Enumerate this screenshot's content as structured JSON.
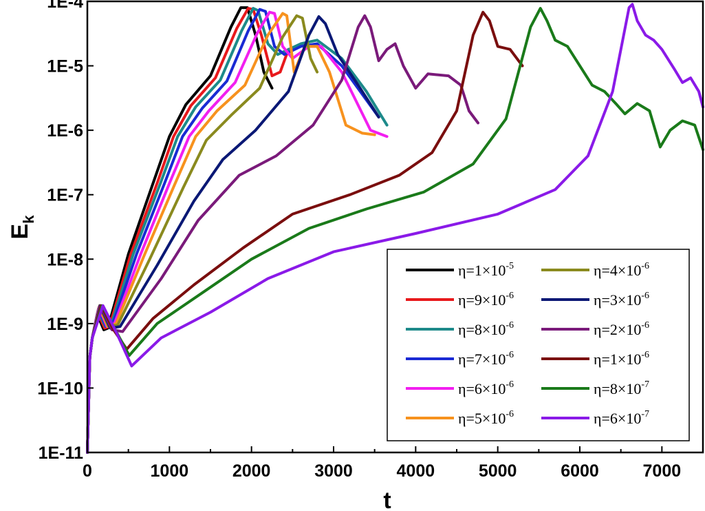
{
  "chart_data": {
    "type": "line",
    "title": "",
    "xlabel": "t",
    "ylabel": "E",
    "ylabel_sub": "k",
    "xlim": [
      0,
      7500
    ],
    "ylim": [
      1e-11,
      0.0001
    ],
    "yscale": "log",
    "grid": false,
    "legend_position": "bottom-right",
    "legend_columns": 2,
    "x_ticks": [
      "0",
      "1000",
      "2000",
      "3000",
      "4000",
      "5000",
      "6000",
      "7000"
    ],
    "y_ticks": [
      "1E-11",
      "1E-10",
      "1E-9",
      "1E-8",
      "1E-7",
      "1E-6",
      "1E-5",
      "1E-4"
    ],
    "series": [
      {
        "name": "η=1×10",
        "exp": "-5",
        "color": "#000000",
        "points": [
          [
            0,
            1e-11
          ],
          [
            30,
            3e-10
          ],
          [
            60,
            6e-10
          ],
          [
            120,
            1.4e-09
          ],
          [
            200,
            8e-10
          ],
          [
            250,
            8.5e-10
          ],
          [
            500,
            1.2e-08
          ],
          [
            800,
            1.5e-07
          ],
          [
            1000,
            8e-07
          ],
          [
            1200,
            2.5e-06
          ],
          [
            1500,
            7e-06
          ],
          [
            1750,
            4e-05
          ],
          [
            1870,
            8e-05
          ],
          [
            1950,
            8e-05
          ],
          [
            2050,
            3e-05
          ],
          [
            2150,
            8e-06
          ],
          [
            2250,
            4.5e-06
          ]
        ]
      },
      {
        "name": "η=9×10",
        "exp": "-6",
        "color": "#e8191c",
        "points": [
          [
            0,
            1e-11
          ],
          [
            30,
            3e-10
          ],
          [
            60,
            6e-10
          ],
          [
            125,
            1.5e-09
          ],
          [
            210,
            8.5e-10
          ],
          [
            270,
            9e-10
          ],
          [
            530,
            1.2e-08
          ],
          [
            850,
            1.5e-07
          ],
          [
            1050,
            8e-07
          ],
          [
            1260,
            2.4e-06
          ],
          [
            1560,
            6.5e-06
          ],
          [
            1820,
            3.8e-05
          ],
          [
            1960,
            7.8e-05
          ],
          [
            2020,
            7.5e-05
          ],
          [
            2120,
            3e-05
          ],
          [
            2250,
            7e-06
          ],
          [
            2350,
            8e-06
          ],
          [
            2450,
            1.8e-05
          ]
        ]
      },
      {
        "name": "η=8×10",
        "exp": "-6",
        "color": "#1d8a8a",
        "points": [
          [
            0,
            1e-11
          ],
          [
            30,
            3e-10
          ],
          [
            60,
            6e-10
          ],
          [
            130,
            1.6e-09
          ],
          [
            220,
            9e-10
          ],
          [
            290,
            9.5e-10
          ],
          [
            560,
            1.2e-08
          ],
          [
            890,
            1.5e-07
          ],
          [
            1100,
            8e-07
          ],
          [
            1320,
            2.3e-06
          ],
          [
            1620,
            6e-06
          ],
          [
            1880,
            3.5e-05
          ],
          [
            2020,
            7.8e-05
          ],
          [
            2080,
            7.2e-05
          ],
          [
            2200,
            2.2e-05
          ],
          [
            2320,
            1.5e-05
          ],
          [
            2600,
            2.2e-05
          ],
          [
            2800,
            2.5e-05
          ],
          [
            3100,
            1.3e-05
          ],
          [
            3400,
            4e-06
          ],
          [
            3650,
            1.2e-06
          ]
        ]
      },
      {
        "name": "η=7×10",
        "exp": "-6",
        "color": "#1a2ad4",
        "points": [
          [
            0,
            1e-11
          ],
          [
            30,
            3e-10
          ],
          [
            60,
            6e-10
          ],
          [
            135,
            1.7e-09
          ],
          [
            230,
            9e-10
          ],
          [
            310,
            1e-09
          ],
          [
            600,
            1.2e-08
          ],
          [
            940,
            1.5e-07
          ],
          [
            1160,
            8e-07
          ],
          [
            1400,
            2.2e-06
          ],
          [
            1700,
            5.8e-06
          ],
          [
            1960,
            3.5e-05
          ],
          [
            2100,
            7.5e-05
          ],
          [
            2170,
            7e-05
          ],
          [
            2280,
            2e-05
          ],
          [
            2400,
            1.5e-05
          ],
          [
            2600,
            2e-05
          ],
          [
            2800,
            2.2e-05
          ],
          [
            3100,
            1e-05
          ],
          [
            3550,
            1.6e-06
          ]
        ]
      },
      {
        "name": "η=6×10",
        "exp": "-6",
        "color": "#f21ff0",
        "points": [
          [
            0,
            1e-11
          ],
          [
            30,
            3e-10
          ],
          [
            60,
            6e-10
          ],
          [
            140,
            1.8e-09
          ],
          [
            240,
            9e-10
          ],
          [
            330,
            1e-09
          ],
          [
            650,
            1.2e-08
          ],
          [
            1000,
            1.5e-07
          ],
          [
            1240,
            8e-07
          ],
          [
            1480,
            2e-06
          ],
          [
            1800,
            5.5e-06
          ],
          [
            2070,
            3.2e-05
          ],
          [
            2220,
            6.8e-05
          ],
          [
            2280,
            6.5e-05
          ],
          [
            2380,
            2e-05
          ],
          [
            2500,
            1.3e-05
          ],
          [
            2700,
            2e-05
          ],
          [
            2850,
            2e-05
          ],
          [
            3100,
            8e-06
          ],
          [
            3450,
            1e-06
          ],
          [
            3650,
            8e-07
          ]
        ]
      },
      {
        "name": "η=5×10",
        "exp": "-6",
        "color": "#f7921e",
        "points": [
          [
            0,
            1e-11
          ],
          [
            30,
            3e-10
          ],
          [
            60,
            6e-10
          ],
          [
            145,
            1.8e-09
          ],
          [
            250,
            9e-10
          ],
          [
            350,
            1e-09
          ],
          [
            700,
            1.2e-08
          ],
          [
            1070,
            1.5e-07
          ],
          [
            1320,
            8e-07
          ],
          [
            1580,
            2e-06
          ],
          [
            1920,
            5e-06
          ],
          [
            2200,
            3e-05
          ],
          [
            2380,
            6.5e-05
          ],
          [
            2430,
            6e-05
          ],
          [
            2520,
            8e-06
          ],
          [
            2650,
            2e-05
          ],
          [
            2800,
            2e-05
          ],
          [
            2950,
            8e-06
          ],
          [
            3150,
            1.2e-06
          ],
          [
            3350,
            9e-07
          ],
          [
            3500,
            8.5e-07
          ]
        ]
      },
      {
        "name": "η=4×10",
        "exp": "-6",
        "color": "#8a8a1e",
        "points": [
          [
            0,
            1e-11
          ],
          [
            30,
            3e-10
          ],
          [
            60,
            6e-10
          ],
          [
            150,
            1.9e-09
          ],
          [
            260,
            9e-10
          ],
          [
            370,
            9.5e-10
          ],
          [
            760,
            1e-08
          ],
          [
            1170,
            1.3e-07
          ],
          [
            1450,
            7e-07
          ],
          [
            1750,
            1.7e-06
          ],
          [
            2100,
            4.5e-06
          ],
          [
            2380,
            2.8e-05
          ],
          [
            2550,
            6e-05
          ],
          [
            2620,
            5.5e-05
          ],
          [
            2720,
            1.3e-05
          ],
          [
            2800,
            8e-06
          ]
        ]
      },
      {
        "name": "η=3×10",
        "exp": "-6",
        "color": "#0a1875",
        "points": [
          [
            0,
            1e-11
          ],
          [
            30,
            3e-10
          ],
          [
            60,
            6e-10
          ],
          [
            155,
            1.9e-09
          ],
          [
            280,
            8.5e-10
          ],
          [
            400,
            9e-10
          ],
          [
            850,
            8e-09
          ],
          [
            1300,
            8e-08
          ],
          [
            1650,
            3.5e-07
          ],
          [
            2050,
            1e-06
          ],
          [
            2450,
            4e-06
          ],
          [
            2700,
            3e-05
          ],
          [
            2820,
            5.8e-05
          ],
          [
            2900,
            4.5e-05
          ],
          [
            3050,
            1.5e-05
          ],
          [
            3300,
            5e-06
          ],
          [
            3550,
            1.6e-06
          ]
        ]
      },
      {
        "name": "η=2×10",
        "exp": "-6",
        "color": "#7a1a7a",
        "points": [
          [
            0,
            1e-11
          ],
          [
            30,
            3e-10
          ],
          [
            60,
            6e-10
          ],
          [
            160,
            1.9e-09
          ],
          [
            300,
            8e-10
          ],
          [
            430,
            7.5e-10
          ],
          [
            900,
            5e-09
          ],
          [
            1350,
            4e-08
          ],
          [
            1850,
            2e-07
          ],
          [
            2300,
            4e-07
          ],
          [
            2750,
            1.2e-06
          ],
          [
            3100,
            6e-06
          ],
          [
            3300,
            4e-05
          ],
          [
            3380,
            6e-05
          ],
          [
            3450,
            4e-05
          ],
          [
            3550,
            1.2e-05
          ],
          [
            3650,
            1.8e-05
          ],
          [
            3750,
            2.2e-05
          ],
          [
            3850,
            1e-05
          ],
          [
            4000,
            4.5e-06
          ],
          [
            4150,
            7.5e-06
          ],
          [
            4400,
            7e-06
          ],
          [
            4550,
            5e-06
          ],
          [
            4650,
            2e-06
          ],
          [
            4760,
            1.3e-06
          ]
        ]
      },
      {
        "name": "η=1×10",
        "exp": "-6",
        "color": "#7a0e0e",
        "points": [
          [
            0,
            1e-11
          ],
          [
            30,
            3e-10
          ],
          [
            60,
            6e-10
          ],
          [
            170,
            1.9e-09
          ],
          [
            320,
            8e-10
          ],
          [
            480,
            4e-10
          ],
          [
            800,
            1.2e-09
          ],
          [
            1300,
            4e-09
          ],
          [
            1900,
            1.5e-08
          ],
          [
            2500,
            5e-08
          ],
          [
            3200,
            1e-07
          ],
          [
            3800,
            2e-07
          ],
          [
            4200,
            4.5e-07
          ],
          [
            4500,
            2e-06
          ],
          [
            4700,
            3e-05
          ],
          [
            4820,
            6.8e-05
          ],
          [
            4900,
            5e-05
          ],
          [
            5000,
            2e-05
          ],
          [
            5150,
            1.8e-05
          ],
          [
            5300,
            1e-05
          ]
        ]
      },
      {
        "name": "η=8×10",
        "exp": "-7",
        "color": "#1a7a1a",
        "points": [
          [
            0,
            1e-11
          ],
          [
            30,
            3e-10
          ],
          [
            60,
            6e-10
          ],
          [
            180,
            1.9e-09
          ],
          [
            340,
            8e-10
          ],
          [
            510,
            3.2e-10
          ],
          [
            850,
            1e-09
          ],
          [
            1400,
            3e-09
          ],
          [
            2000,
            1e-08
          ],
          [
            2700,
            3e-08
          ],
          [
            3400,
            6e-08
          ],
          [
            4100,
            1.1e-07
          ],
          [
            4700,
            3e-07
          ],
          [
            5100,
            1.5e-06
          ],
          [
            5400,
            4e-05
          ],
          [
            5520,
            7.8e-05
          ],
          [
            5600,
            5e-05
          ],
          [
            5700,
            2.5e-05
          ],
          [
            5850,
            2e-05
          ],
          [
            6000,
            1e-05
          ],
          [
            6150,
            5e-06
          ],
          [
            6300,
            4e-06
          ],
          [
            6450,
            2.5e-06
          ],
          [
            6550,
            1.8e-06
          ],
          [
            6700,
            2.6e-06
          ],
          [
            6850,
            2e-06
          ],
          [
            6980,
            5.5e-07
          ],
          [
            7100,
            1e-06
          ],
          [
            7250,
            1.4e-06
          ],
          [
            7400,
            1.2e-06
          ],
          [
            7500,
            5e-07
          ]
        ]
      },
      {
        "name": "η=6×10",
        "exp": "-7",
        "color": "#8a1ae8",
        "points": [
          [
            0,
            1e-11
          ],
          [
            30,
            3e-10
          ],
          [
            60,
            6e-10
          ],
          [
            190,
            1.9e-09
          ],
          [
            360,
            7e-10
          ],
          [
            540,
            2.2e-10
          ],
          [
            900,
            6e-10
          ],
          [
            1500,
            1.5e-09
          ],
          [
            2200,
            5e-09
          ],
          [
            3000,
            1.3e-08
          ],
          [
            4000,
            2.5e-08
          ],
          [
            5000,
            5e-08
          ],
          [
            5700,
            1.2e-07
          ],
          [
            6100,
            4e-07
          ],
          [
            6400,
            4e-06
          ],
          [
            6600,
            8e-05
          ],
          [
            6640,
            9e-05
          ],
          [
            6700,
            5e-05
          ],
          [
            6800,
            3e-05
          ],
          [
            6900,
            2.5e-05
          ],
          [
            7000,
            1.8e-05
          ],
          [
            7150,
            9e-06
          ],
          [
            7250,
            5.5e-06
          ],
          [
            7350,
            6.5e-06
          ],
          [
            7450,
            4e-06
          ],
          [
            7500,
            2.3e-06
          ]
        ]
      }
    ]
  }
}
